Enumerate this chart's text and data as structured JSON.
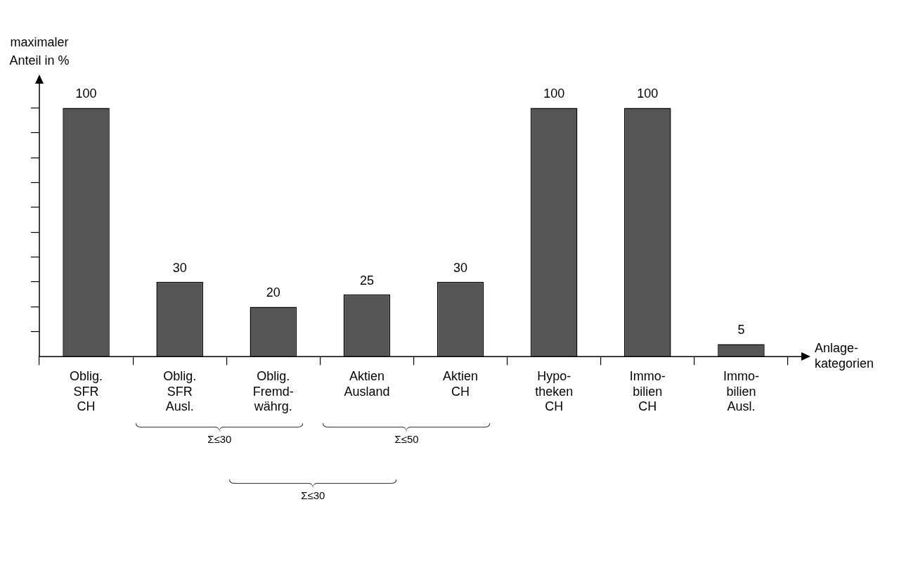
{
  "chart_data": {
    "type": "bar",
    "xlabel": "Anlage-\nkategorien",
    "ylabel": "maximaler\nAnteil in %",
    "categories": [
      "Oblig.\nSFR\nCH",
      "Oblig.\nSFR\nAusl.",
      "Oblig.\nFremd-\nwährg.",
      "Aktien\nAusland",
      "Aktien\nCH",
      "Hypo-\ntheken\nCH",
      "Immo-\nbilien\nCH",
      "Immo-\nbilien\nAusl."
    ],
    "values": [
      100,
      30,
      20,
      25,
      30,
      100,
      100,
      5
    ],
    "color": "#555555",
    "ylim": [
      0,
      110
    ],
    "yticks": [
      {
        "value": 10,
        "label": null
      },
      {
        "value": 20,
        "label": null
      },
      {
        "value": 30,
        "label": null
      },
      {
        "value": 40,
        "label": null
      },
      {
        "value": 50,
        "label": null
      },
      {
        "value": 60,
        "label": null
      },
      {
        "value": 70,
        "label": null
      },
      {
        "value": 80,
        "label": null
      },
      {
        "value": 90,
        "label": null
      },
      {
        "value": 100,
        "label": null
      }
    ],
    "data_labels": true,
    "tick_labels": "x",
    "annotations": [
      "Σ≤30",
      "Σ≤50",
      "Σ≤30"
    ]
  }
}
